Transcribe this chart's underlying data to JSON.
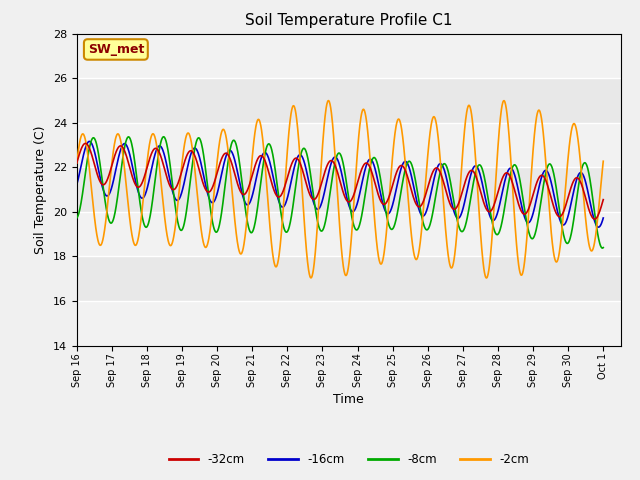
{
  "title": "Soil Temperature Profile C1",
  "xlabel": "Time",
  "ylabel": "Soil Temperature (C)",
  "ylim": [
    14,
    28
  ],
  "yticks": [
    14,
    16,
    18,
    20,
    22,
    24,
    26,
    28
  ],
  "colors": {
    "-32cm": "#cc0000",
    "-16cm": "#0000cc",
    "-8cm": "#00aa00",
    "-2cm": "#ff9900"
  },
  "annotation_text": "SW_met",
  "annotation_color": "#8b0000",
  "annotation_bg": "#ffff99",
  "annotation_border": "#cc8800",
  "fig_facecolor": "#f0f0f0",
  "ax_facecolor": "#e8e8e8",
  "start_day": 16,
  "tick_labels": [
    "Sep 16",
    "Sep 17",
    "Sep 18",
    "Sep 19",
    "Sep 20",
    "Sep 21",
    "Sep 22",
    "Sep 23",
    "Sep 24",
    "Sep 25",
    "Sep 26",
    "Sep 27",
    "Sep 28",
    "Sep 29",
    "Sep 30",
    "Oct 1"
  ]
}
